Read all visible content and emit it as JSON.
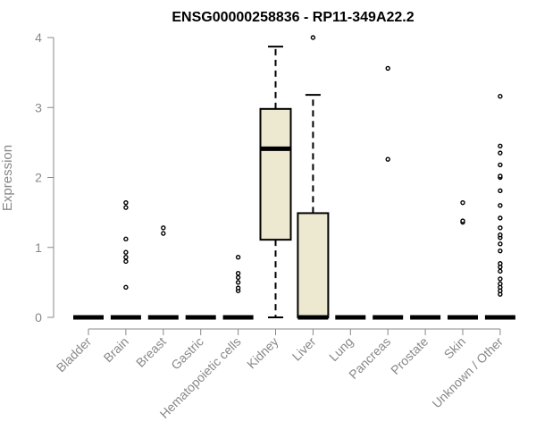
{
  "chart_data": {
    "type": "box",
    "title": "ENSG00000258836 - RP11-349A22.2",
    "xlabel": "",
    "ylabel": "Expression",
    "ylim": [
      0,
      4
    ],
    "yticks": [
      0,
      1,
      2,
      3,
      4
    ],
    "grid": false,
    "box_fill": "#ede8d0",
    "categories": [
      "Bladder",
      "Brain",
      "Breast",
      "Gastric",
      "Hematopoietic cells",
      "Kidney",
      "Liver",
      "Lung",
      "Pancreas",
      "Prostate",
      "Skin",
      "Unknown / Other"
    ],
    "boxes": [
      {
        "category": "Bladder",
        "q1": 0,
        "median": 0,
        "q3": 0,
        "whisker_low": 0,
        "whisker_high": 0,
        "outliers": []
      },
      {
        "category": "Brain",
        "q1": 0,
        "median": 0,
        "q3": 0,
        "whisker_low": 0,
        "whisker_high": 0,
        "outliers": [
          0.43,
          0.8,
          0.86,
          0.93,
          1.12,
          1.57,
          1.64
        ]
      },
      {
        "category": "Breast",
        "q1": 0,
        "median": 0,
        "q3": 0,
        "whisker_low": 0,
        "whisker_high": 0,
        "outliers": [
          1.2,
          1.28
        ]
      },
      {
        "category": "Gastric",
        "q1": 0,
        "median": 0,
        "q3": 0,
        "whisker_low": 0,
        "whisker_high": 0,
        "outliers": []
      },
      {
        "category": "Hematopoietic cells",
        "q1": 0,
        "median": 0,
        "q3": 0,
        "whisker_low": 0,
        "whisker_high": 0,
        "outliers": [
          0.38,
          0.42,
          0.5,
          0.57,
          0.63,
          0.86
        ]
      },
      {
        "category": "Kidney",
        "q1": 1.11,
        "median": 2.41,
        "q3": 2.98,
        "whisker_low": 0,
        "whisker_high": 3.87,
        "outliers": []
      },
      {
        "category": "Liver",
        "q1": 0,
        "median": 0,
        "q3": 1.49,
        "whisker_low": 0,
        "whisker_high": 3.18,
        "outliers": [
          4.0
        ]
      },
      {
        "category": "Lung",
        "q1": 0,
        "median": 0,
        "q3": 0,
        "whisker_low": 0,
        "whisker_high": 0,
        "outliers": []
      },
      {
        "category": "Pancreas",
        "q1": 0,
        "median": 0,
        "q3": 0,
        "whisker_low": 0,
        "whisker_high": 0,
        "outliers": [
          2.26,
          3.56
        ]
      },
      {
        "category": "Prostate",
        "q1": 0,
        "median": 0,
        "q3": 0,
        "whisker_low": 0,
        "whisker_high": 0,
        "outliers": []
      },
      {
        "category": "Skin",
        "q1": 0,
        "median": 0,
        "q3": 0,
        "whisker_low": 0,
        "whisker_high": 0,
        "outliers": [
          1.36,
          1.38,
          1.64
        ]
      },
      {
        "category": "Unknown / Other",
        "q1": 0,
        "median": 0,
        "q3": 0,
        "whisker_low": 0,
        "whisker_high": 0,
        "outliers": [
          0.33,
          0.38,
          0.43,
          0.48,
          0.55,
          0.66,
          0.72,
          0.77,
          0.95,
          1.05,
          1.14,
          1.18,
          1.28,
          1.42,
          1.6,
          1.81,
          2.0,
          2.02,
          2.18,
          2.35,
          2.45,
          3.16
        ]
      }
    ]
  }
}
